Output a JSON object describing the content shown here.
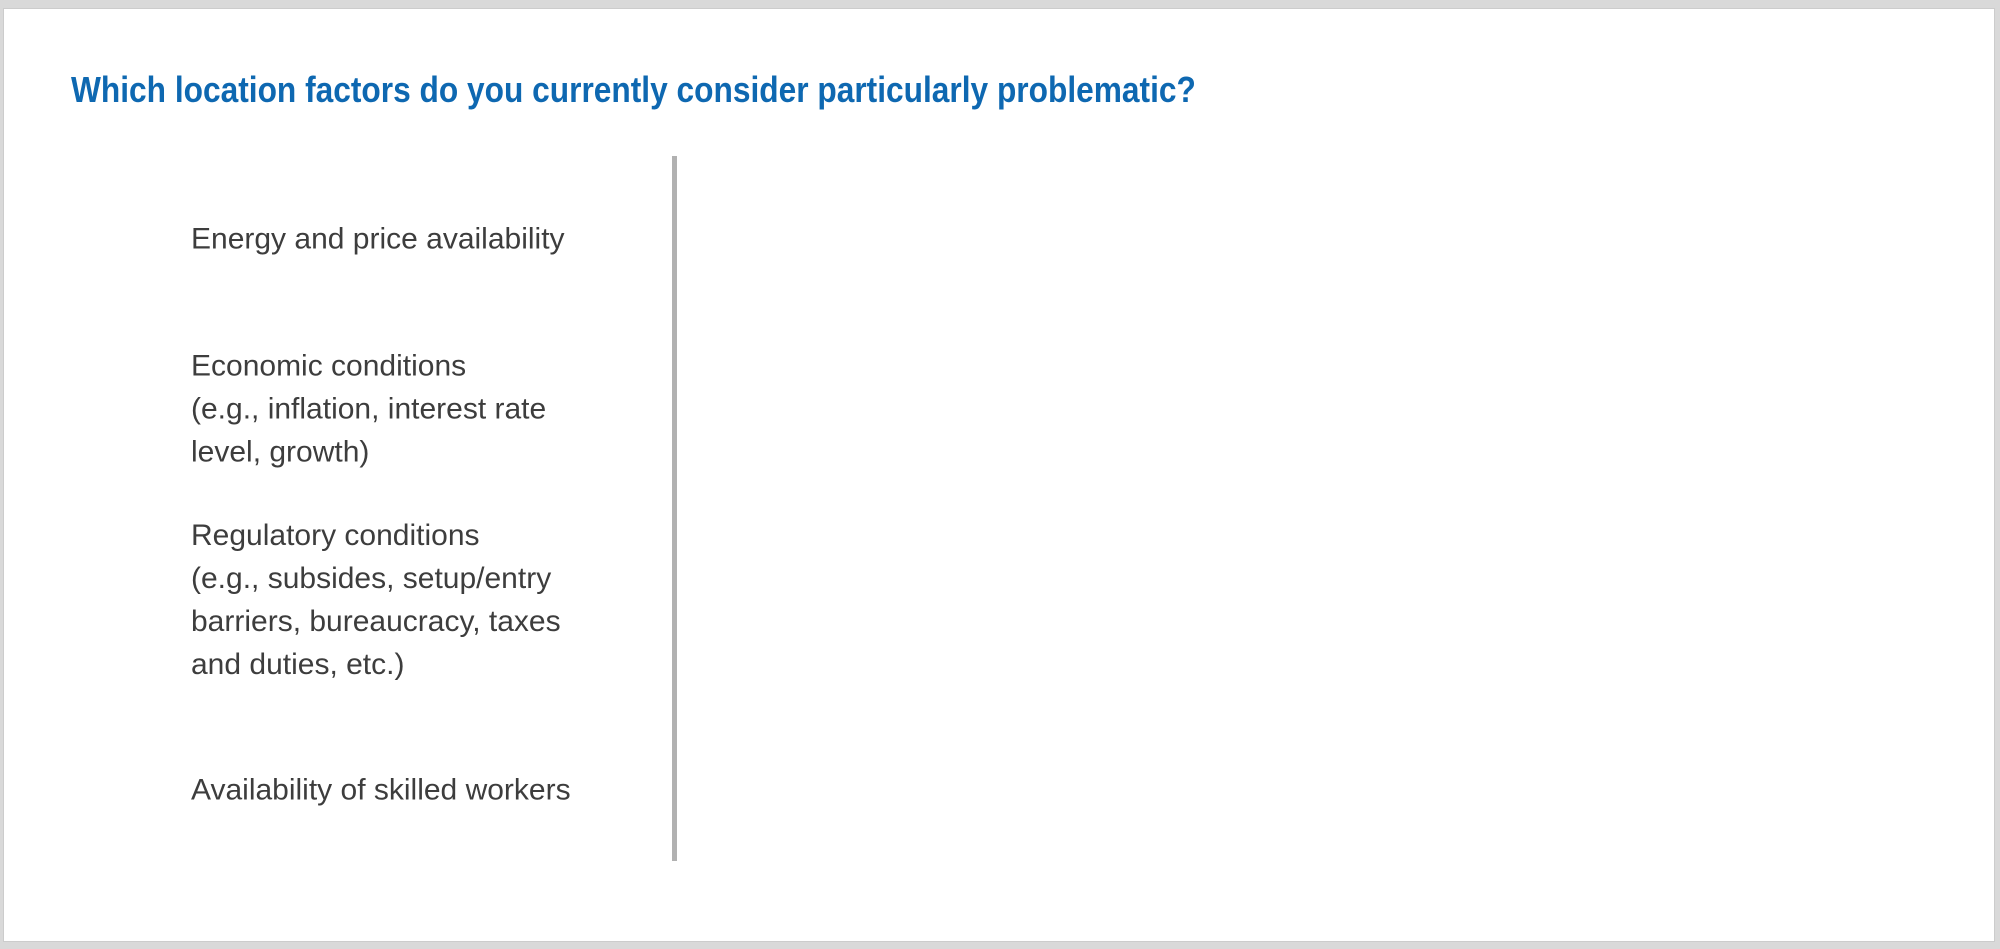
{
  "chart_data": {
    "type": "bar",
    "orientation": "horizontal",
    "title": "Which location factors do you currently consider particularly problematic?",
    "categories": [
      "Energy and price availability",
      "Economic conditions\n(e.g., inflation, interest rate\nlevel, growth)",
      "Regulatory conditions\n(e.g., subsides, setup/entry\nbarriers, bureaucracy, taxes\nand duties, etc.)",
      "Availability of skilled workers"
    ],
    "values": [
      null,
      null,
      null,
      null
    ],
    "bars_rendered": false,
    "xlabel": "",
    "ylabel": "",
    "legend": "none",
    "grid": false,
    "visible_axes": [
      "left-spine-only"
    ]
  },
  "colors": {
    "title_blue": "#0e68b1",
    "label_gray": "#3d3d3d",
    "axis_gray": "#b1b1b1",
    "frame_gray": "#d9d9d9",
    "card_background": "#ffffff"
  }
}
